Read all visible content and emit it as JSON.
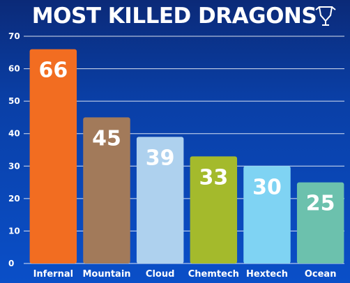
{
  "chart_data": {
    "type": "bar",
    "title": "MOST KILLED DRAGONS",
    "categories": [
      "Infernal",
      "Mountain",
      "Cloud",
      "Chemtech",
      "Hextech",
      "Ocean"
    ],
    "values": [
      66,
      45,
      39,
      33,
      30,
      25
    ],
    "colors": [
      "#f26d21",
      "#a27a5a",
      "#aed1ee",
      "#a4ba2c",
      "#7fd3f3",
      "#6cc1ad"
    ],
    "ylim": [
      0,
      70
    ],
    "yticks": [
      0,
      10,
      20,
      30,
      40,
      50,
      60,
      70
    ],
    "grid": true,
    "show_data_labels": true
  },
  "logo": {
    "icon": "worlds-trophy-logo-icon"
  }
}
